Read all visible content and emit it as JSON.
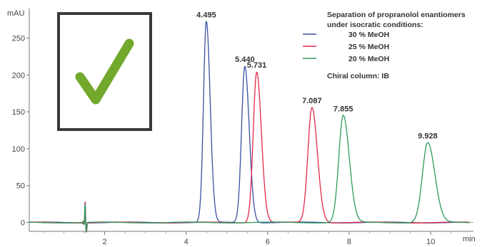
{
  "chart_data": {
    "type": "line",
    "ylabel": "mAU",
    "xlabel": "min",
    "xlim": [
      0.15,
      11.05
    ],
    "ylim": [
      -12,
      290
    ],
    "x_ticks": [
      2,
      4,
      6,
      8,
      10
    ],
    "y_ticks": [
      0,
      50,
      100,
      150,
      200,
      250
    ],
    "grid": false,
    "legend_position": "top-right",
    "legend_title": [
      "Separation of propranolol enantiomers",
      "under isocratic conditions:"
    ],
    "legend_note": "Chiral column: IB",
    "series": [
      {
        "name": "30 % MeOH",
        "color": "#3b4fa0",
        "peaks": [
          {
            "time": 4.495,
            "label": "4.495",
            "height": 272,
            "width": 0.07
          },
          {
            "time": 5.44,
            "label": "5.440",
            "height": 212,
            "width": 0.08
          }
        ]
      },
      {
        "name": "25 % MeOH",
        "color": "#e0294a",
        "peaks": [
          {
            "time": 5.731,
            "label": "5.731",
            "height": 204,
            "width": 0.085
          },
          {
            "time": 7.087,
            "label": "7.087",
            "height": 156,
            "width": 0.1
          }
        ]
      },
      {
        "name": "20 % MeOH",
        "color": "#2e9a5a",
        "peaks": [
          {
            "time": 7.855,
            "label": "7.855",
            "height": 145,
            "width": 0.11
          },
          {
            "time": 9.928,
            "label": "9.928",
            "height": 108,
            "width": 0.13
          }
        ]
      }
    ]
  },
  "overlay": {
    "check_icon": "checkmark-icon",
    "check_color": "#72a82c",
    "frame_color": "#3a3a3a"
  }
}
